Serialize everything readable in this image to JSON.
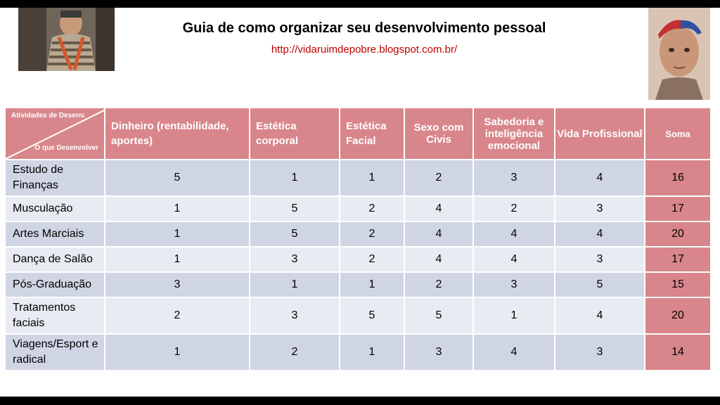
{
  "title": "Guia de como organizar seu desenvolvimento pessoal",
  "url": "http://vidaruimdepobre.blogspot.com.br/",
  "table": {
    "corner_top": "Atividades de Desenv.",
    "corner_bottom": "O que Desenvolver",
    "headers": [
      "Dinheiro (rentabilidade, aportes)",
      "Estética corporal",
      "Estética Facial",
      "Sexo com Civis",
      "Sabedoria e inteligência emocional",
      "Vida Profissional",
      "Soma"
    ],
    "rows": [
      {
        "label": "Estudo de Finanças",
        "values": [
          "5",
          "1",
          "1",
          "2",
          "3",
          "4"
        ],
        "soma": "16"
      },
      {
        "label": "Musculação",
        "values": [
          "1",
          "5",
          "2",
          "4",
          "2",
          "3"
        ],
        "soma": "17"
      },
      {
        "label": "Artes Marciais",
        "values": [
          "1",
          "5",
          "2",
          "4",
          "4",
          "4"
        ],
        "soma": "20"
      },
      {
        "label": "Dança de Salão",
        "values": [
          "1",
          "3",
          "2",
          "4",
          "4",
          "3"
        ],
        "soma": "17"
      },
      {
        "label": "Pós-Graduação",
        "values": [
          "3",
          "1",
          "1",
          "2",
          "3",
          "5"
        ],
        "soma": "15"
      },
      {
        "label": "Tratamentos faciais",
        "values": [
          "2",
          "3",
          "5",
          "5",
          "1",
          "4"
        ],
        "soma": "20"
      },
      {
        "label": "Viagens/Esport e radical",
        "values": [
          "1",
          "2",
          "1",
          "3",
          "4",
          "3"
        ],
        "soma": "14"
      }
    ]
  },
  "colors": {
    "header_bg": "#d8868b",
    "row_dark": "#cfd5e3",
    "row_light": "#e8ebf2",
    "url": "#c00000"
  }
}
